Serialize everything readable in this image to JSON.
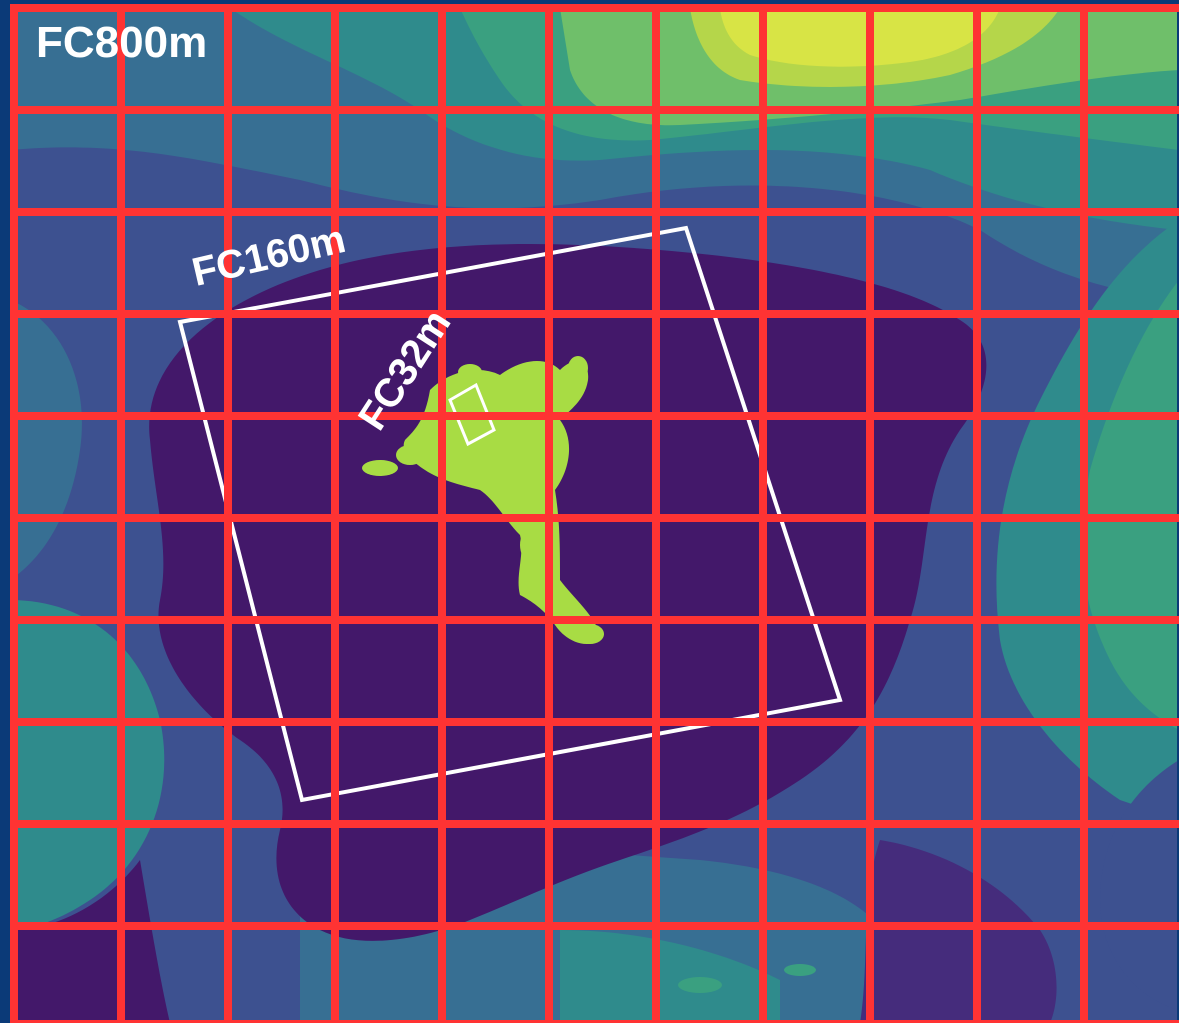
{
  "map": {
    "domains": [
      {
        "label": "FC800m"
      },
      {
        "label": "FC160m"
      },
      {
        "label": "FC32m"
      }
    ],
    "grid": {
      "rows": 10,
      "cols": 11,
      "line_color": "#ff3333"
    },
    "colors": {
      "frame": "#0b3a78",
      "deep": "#43186a",
      "deep2": "#452c7c",
      "mid_blue": "#3d5190",
      "blue_teal": "#376f93",
      "teal": "#2f8b8c",
      "green_teal": "#3aa080",
      "green": "#6fbf6a",
      "yellow_green": "#b5d64a",
      "yellow": "#d8e445",
      "land": "#a8dc44",
      "outline": "#ffffff"
    }
  }
}
